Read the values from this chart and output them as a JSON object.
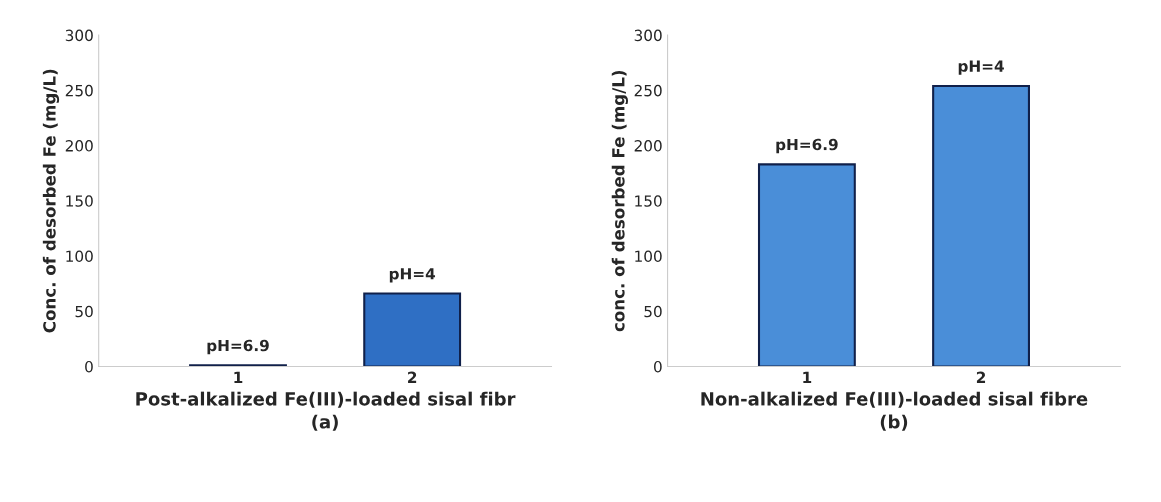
{
  "chart_data": [
    {
      "type": "bar",
      "categories": [
        "1",
        "2"
      ],
      "values": [
        1,
        66
      ],
      "color": "#2f6fc4",
      "ylabel": "Conc. of desorbed Fe (mg/L)",
      "xlabel": "Post-alkalized Fe(III)-loaded sisal fibr\n(a)",
      "ylim": [
        0,
        300
      ],
      "yticks": [
        0,
        50,
        100,
        150,
        200,
        250,
        300
      ],
      "annotations": [
        {
          "text": "pH=6.9",
          "x": "1",
          "y": 1
        },
        {
          "text": "pH=4",
          "x": "2",
          "y": 66
        }
      ]
    },
    {
      "type": "bar",
      "categories": [
        "1",
        "2"
      ],
      "values": [
        183,
        254
      ],
      "color": "#4a8ed8",
      "ylabel": "conc. of desorbed Fe (mg/L)",
      "xlabel": "Non-alkalized Fe(III)-loaded sisal fibre\n(b)",
      "ylim": [
        0,
        300
      ],
      "yticks": [
        0,
        50,
        100,
        150,
        200,
        250,
        300
      ],
      "annotations": [
        {
          "text": "pH=6.9",
          "x": "1",
          "y": 183
        },
        {
          "text": "pH=4",
          "x": "2",
          "y": 254
        }
      ]
    }
  ]
}
